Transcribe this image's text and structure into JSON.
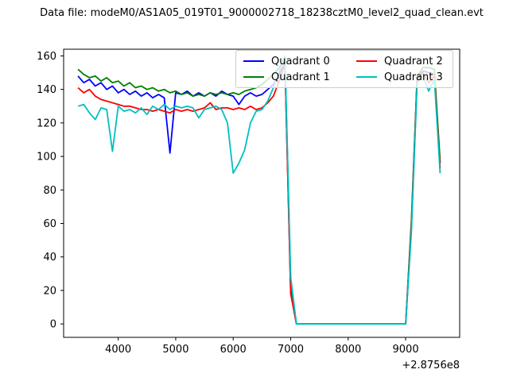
{
  "chart_data": {
    "type": "line",
    "title": "Data file: modeM0/AS1A05_019T01_9000002718_18238cztM0_level2_quad_clean.evt",
    "xlabel": "",
    "ylabel": "",
    "x_axis_offset_label": "+2.8756e8",
    "xlim": [
      3050,
      9940
    ],
    "ylim": [
      -8,
      164
    ],
    "xticks": [
      4000,
      5000,
      6000,
      7000,
      8000,
      9000
    ],
    "yticks": [
      0,
      20,
      40,
      60,
      80,
      100,
      120,
      140,
      160
    ],
    "grid": false,
    "legend_position": "upper right",
    "legend_columns": 2,
    "x": [
      3300,
      3400,
      3500,
      3600,
      3700,
      3800,
      3900,
      4000,
      4100,
      4200,
      4300,
      4400,
      4500,
      4600,
      4700,
      4800,
      4900,
      5000,
      5100,
      5200,
      5300,
      5400,
      5500,
      5600,
      5700,
      5800,
      5900,
      6000,
      6100,
      6200,
      6300,
      6400,
      6500,
      6600,
      6700,
      6800,
      6900,
      7000,
      7100,
      7200,
      7300,
      7400,
      7500,
      7600,
      7700,
      7800,
      7900,
      8000,
      8100,
      8200,
      8300,
      8400,
      8500,
      8600,
      8700,
      8800,
      8900,
      9000,
      9100,
      9200,
      9300,
      9400,
      9500,
      9600
    ],
    "series": [
      {
        "name": "Quadrant 0",
        "color": "#0000ff",
        "values": [
          148,
          144,
          146,
          142,
          144,
          140,
          142,
          138,
          140,
          137,
          139,
          136,
          138,
          135,
          137,
          135,
          102,
          138,
          137,
          139,
          136,
          138,
          136,
          138,
          136,
          139,
          137,
          136,
          131,
          136,
          138,
          136,
          137,
          140,
          143,
          149,
          156,
          20,
          0,
          0,
          0,
          0,
          0,
          0,
          0,
          0,
          0,
          0,
          0,
          0,
          0,
          0,
          0,
          0,
          0,
          0,
          0,
          0,
          60,
          147,
          151,
          150,
          149,
          96
        ]
      },
      {
        "name": "Quadrant 1",
        "color": "#008000",
        "values": [
          152,
          149,
          147,
          148,
          145,
          147,
          144,
          145,
          142,
          144,
          141,
          142,
          140,
          141,
          139,
          140,
          138,
          139,
          137,
          138,
          136,
          137,
          136,
          138,
          137,
          138,
          137,
          138,
          137,
          139,
          140,
          141,
          143,
          146,
          149,
          153,
          158,
          25,
          0,
          0,
          0,
          0,
          0,
          0,
          0,
          0,
          0,
          0,
          0,
          0,
          0,
          0,
          0,
          0,
          0,
          0,
          0,
          0,
          62,
          148,
          153,
          153,
          152,
          97
        ]
      },
      {
        "name": "Quadrant 2",
        "color": "#ff0000",
        "values": [
          141,
          138,
          140,
          136,
          134,
          133,
          132,
          131,
          130,
          130,
          129,
          128,
          128,
          127,
          128,
          127,
          126,
          128,
          127,
          128,
          127,
          128,
          129,
          132,
          128,
          129,
          129,
          128,
          129,
          128,
          130,
          128,
          129,
          132,
          136,
          145,
          155,
          18,
          0,
          0,
          0,
          0,
          0,
          0,
          0,
          0,
          0,
          0,
          0,
          0,
          0,
          0,
          0,
          0,
          0,
          0,
          0,
          0,
          58,
          146,
          150,
          144,
          148,
          93
        ]
      },
      {
        "name": "Quadrant 3",
        "color": "#00bfbf",
        "values": [
          130,
          131,
          126,
          122,
          129,
          128,
          103,
          130,
          127,
          128,
          126,
          129,
          125,
          130,
          128,
          131,
          128,
          130,
          129,
          130,
          129,
          123,
          128,
          129,
          130,
          128,
          120,
          90,
          96,
          104,
          120,
          127,
          128,
          133,
          141,
          151,
          160,
          28,
          0,
          0,
          0,
          0,
          0,
          0,
          0,
          0,
          0,
          0,
          0,
          0,
          0,
          0,
          0,
          0,
          0,
          0,
          0,
          0,
          55,
          144,
          148,
          139,
          146,
          90
        ]
      }
    ]
  }
}
